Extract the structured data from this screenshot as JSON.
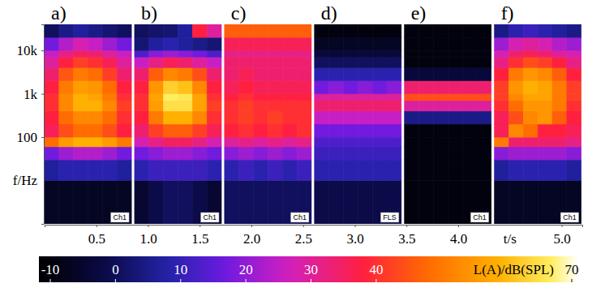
{
  "chart_data": {
    "type": "heatmap",
    "x_label": "t/s",
    "y_label": "f/Hz",
    "log": "y",
    "xlim": [
      0,
      5.2
    ],
    "ylim": [
      1,
      40000
    ],
    "xticks": [
      0.5,
      {
        "value": 1,
        "label": "1.0"
      },
      1.5,
      {
        "value": 2,
        "label": "2.0"
      },
      2.5,
      {
        "value": 3,
        "label": "3.0"
      },
      3.5,
      {
        "value": 4,
        "label": "4.0"
      },
      {
        "value": 5,
        "label": "5.0"
      }
    ],
    "yticks": [
      100,
      {
        "value": 1000,
        "label": "1k"
      },
      {
        "value": 10000,
        "label": "10k"
      }
    ],
    "freq_bins": [
      1,
      10,
      30,
      60,
      100,
      200,
      400,
      700,
      1000,
      2000,
      4000,
      7000,
      10000,
      20000,
      40000
    ],
    "colorbar": {
      "label": "L(A)/dB(SPL)",
      "range": [
        -10,
        70
      ],
      "ticks": [
        -10,
        0,
        10,
        20,
        30,
        40,
        70
      ]
    },
    "panels": [
      {
        "label": "a)",
        "channel": "Ch1",
        "time_bins": [
          0,
          0.14,
          0.28,
          0.42,
          0.56,
          0.7,
          0.84
        ],
        "values": [
          [
            -5,
            -5,
            -5,
            -5,
            -5,
            -5
          ],
          [
            8,
            10,
            10,
            10,
            10,
            8
          ],
          [
            18,
            22,
            24,
            24,
            22,
            18
          ],
          [
            48,
            55,
            58,
            58,
            55,
            50
          ],
          [
            36,
            44,
            48,
            48,
            44,
            38
          ],
          [
            38,
            48,
            52,
            52,
            48,
            40
          ],
          [
            40,
            52,
            58,
            58,
            52,
            42
          ],
          [
            40,
            52,
            58,
            56,
            50,
            40
          ],
          [
            38,
            50,
            55,
            54,
            48,
            38
          ],
          [
            34,
            45,
            50,
            48,
            42,
            34
          ],
          [
            30,
            38,
            42,
            40,
            36,
            30
          ],
          [
            26,
            32,
            35,
            34,
            30,
            26
          ],
          [
            18,
            24,
            28,
            26,
            22,
            18
          ],
          [
            2,
            6,
            8,
            6,
            4,
            2
          ]
        ]
      },
      {
        "label": "b)",
        "channel": "Ch1",
        "time_bins": [
          0.87,
          1.01,
          1.15,
          1.29,
          1.43,
          1.57,
          1.71
        ],
        "values": [
          [
            -3,
            0,
            2,
            2,
            0,
            -3
          ],
          [
            10,
            12,
            12,
            12,
            12,
            10
          ],
          [
            18,
            20,
            22,
            22,
            20,
            18
          ],
          [
            28,
            32,
            35,
            35,
            32,
            28
          ],
          [
            34,
            42,
            46,
            46,
            42,
            36
          ],
          [
            38,
            50,
            58,
            58,
            52,
            40
          ],
          [
            40,
            55,
            64,
            64,
            56,
            42
          ],
          [
            40,
            56,
            66,
            65,
            56,
            40
          ],
          [
            38,
            54,
            62,
            60,
            52,
            38
          ],
          [
            34,
            46,
            52,
            50,
            44,
            34
          ],
          [
            26,
            32,
            36,
            34,
            30,
            26
          ],
          [
            14,
            20,
            22,
            20,
            18,
            14
          ],
          [
            4,
            8,
            10,
            8,
            6,
            4
          ],
          [
            2,
            3,
            4,
            8,
            38,
            30
          ]
        ]
      },
      {
        "label": "c)",
        "channel": "Ch1",
        "time_bins": [
          1.74,
          1.88,
          2.02,
          2.16,
          2.3,
          2.44,
          2.58
        ],
        "values": [
          [
            2,
            2,
            2,
            2,
            2,
            2
          ],
          [
            10,
            12,
            10,
            12,
            10,
            12
          ],
          [
            20,
            22,
            20,
            22,
            20,
            22
          ],
          [
            30,
            32,
            30,
            32,
            30,
            32
          ],
          [
            38,
            40,
            38,
            40,
            38,
            40
          ],
          [
            40,
            42,
            40,
            42,
            40,
            40
          ],
          [
            40,
            42,
            40,
            40,
            40,
            40
          ],
          [
            38,
            40,
            38,
            38,
            38,
            38
          ],
          [
            36,
            38,
            36,
            36,
            36,
            36
          ],
          [
            34,
            36,
            34,
            34,
            34,
            34
          ],
          [
            34,
            34,
            34,
            34,
            34,
            34
          ],
          [
            32,
            32,
            32,
            32,
            32,
            32
          ],
          [
            36,
            36,
            36,
            36,
            36,
            36
          ],
          [
            46,
            46,
            46,
            46,
            46,
            46
          ]
        ]
      },
      {
        "label": "d)",
        "channel": "FLS",
        "time_bins": [
          2.61,
          2.75,
          2.89,
          3.03,
          3.17,
          3.31,
          3.45
        ],
        "values": [
          [
            0,
            0,
            0,
            0,
            0,
            0
          ],
          [
            10,
            10,
            10,
            10,
            10,
            10
          ],
          [
            12,
            12,
            12,
            12,
            12,
            12
          ],
          [
            14,
            14,
            14,
            14,
            14,
            14
          ],
          [
            18,
            18,
            18,
            18,
            18,
            18
          ],
          [
            26,
            26,
            26,
            26,
            26,
            26
          ],
          [
            34,
            34,
            34,
            34,
            34,
            34
          ],
          [
            30,
            30,
            30,
            30,
            30,
            30
          ],
          [
            18,
            20,
            18,
            20,
            18,
            20
          ],
          [
            10,
            10,
            10,
            10,
            10,
            10
          ],
          [
            2,
            2,
            2,
            2,
            2,
            2
          ],
          [
            -2,
            -2,
            -2,
            -2,
            -2,
            -2
          ],
          [
            -5,
            -5,
            -5,
            -5,
            -5,
            -5
          ],
          [
            -8,
            -8,
            -8,
            -8,
            -8,
            -8
          ]
        ]
      },
      {
        "label": "e)",
        "channel": "Ch1",
        "time_bins": [
          3.48,
          3.62,
          3.76,
          3.9,
          4.04,
          4.18,
          4.32
        ],
        "values": [
          [
            -8,
            -8,
            -8,
            -8,
            -8,
            -8
          ],
          [
            -8,
            -8,
            -8,
            -8,
            -8,
            -8
          ],
          [
            -8,
            -8,
            -8,
            -8,
            -8,
            -8
          ],
          [
            -8,
            -8,
            -8,
            -8,
            -8,
            -8
          ],
          [
            -8,
            -8,
            -8,
            -8,
            -8,
            -8
          ],
          [
            6,
            6,
            6,
            6,
            6,
            6
          ],
          [
            30,
            30,
            30,
            30,
            30,
            30
          ],
          [
            44,
            44,
            44,
            44,
            44,
            44
          ],
          [
            34,
            34,
            34,
            34,
            34,
            34
          ],
          [
            -2,
            -2,
            -2,
            -2,
            -2,
            -2
          ],
          [
            -8,
            -8,
            -8,
            -8,
            -8,
            -8
          ],
          [
            -8,
            -8,
            -8,
            -8,
            -8,
            -8
          ],
          [
            -8,
            -8,
            -8,
            -8,
            -8,
            -8
          ],
          [
            -8,
            -8,
            -8,
            -8,
            -8,
            -8
          ]
        ]
      },
      {
        "label": "f)",
        "channel": "Ch1",
        "time_bins": [
          4.35,
          4.49,
          4.63,
          4.77,
          4.91,
          5.05,
          5.19
        ],
        "values": [
          [
            -5,
            -5,
            -5,
            -5,
            -5,
            -5
          ],
          [
            8,
            10,
            10,
            10,
            10,
            8
          ],
          [
            20,
            22,
            22,
            22,
            22,
            20
          ],
          [
            50,
            34,
            34,
            34,
            34,
            32
          ],
          [
            36,
            52,
            48,
            38,
            38,
            36
          ],
          [
            36,
            44,
            52,
            54,
            46,
            38
          ],
          [
            40,
            48,
            54,
            54,
            50,
            40
          ],
          [
            42,
            52,
            56,
            56,
            50,
            42
          ],
          [
            42,
            54,
            58,
            56,
            50,
            42
          ],
          [
            38,
            50,
            54,
            52,
            46,
            38
          ],
          [
            32,
            40,
            44,
            42,
            38,
            32
          ],
          [
            28,
            34,
            36,
            34,
            30,
            28
          ],
          [
            22,
            28,
            30,
            28,
            24,
            22
          ],
          [
            6,
            10,
            12,
            10,
            8,
            6
          ]
        ]
      }
    ]
  }
}
